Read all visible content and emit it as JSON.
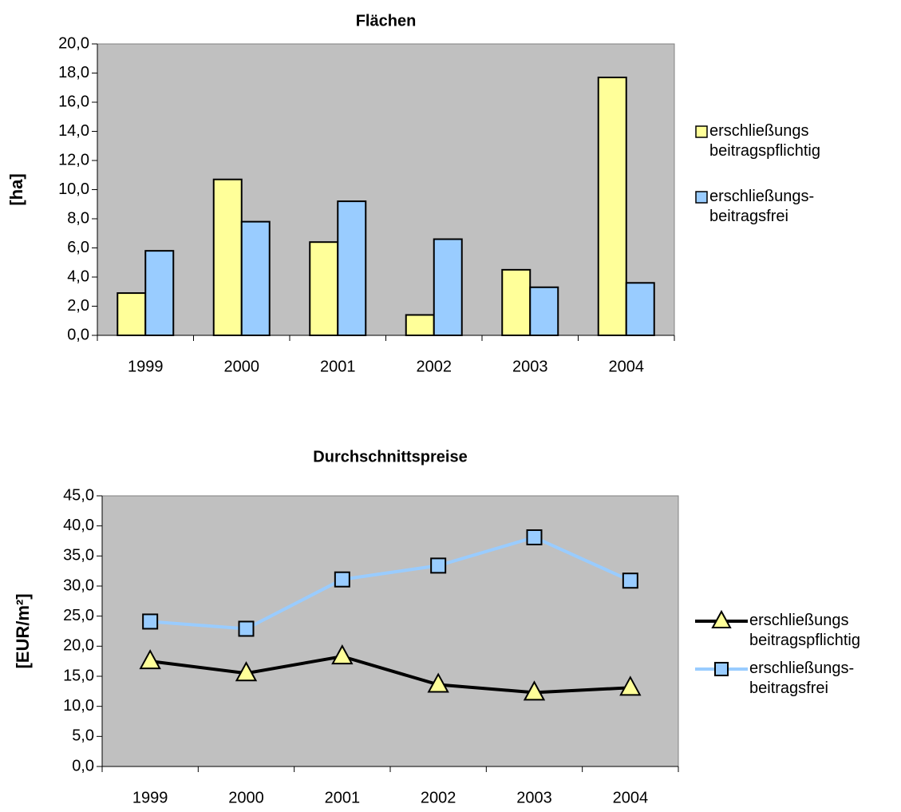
{
  "chart_data": [
    {
      "type": "bar",
      "title": "Flächen",
      "y_label": "[ha]",
      "categories": [
        "1999",
        "2000",
        "2001",
        "2002",
        "2003",
        "2004"
      ],
      "series": [
        {
          "name": "erschließungs\nbeitragspflichtig",
          "color": "#ffff99",
          "values": [
            2.9,
            10.7,
            6.4,
            1.4,
            4.5,
            17.7
          ]
        },
        {
          "name": "erschließungs-\nbeitragsfrei",
          "color": "#99ccff",
          "values": [
            5.8,
            7.8,
            9.2,
            6.6,
            3.3,
            3.6
          ]
        }
      ],
      "ylim": [
        0,
        20
      ],
      "yticks": [
        {
          "value": 0,
          "label": "0,0"
        },
        {
          "value": 2,
          "label": "2,0"
        },
        {
          "value": 4,
          "label": "4,0"
        },
        {
          "value": 6,
          "label": "6,0"
        },
        {
          "value": 8,
          "label": "8,0"
        },
        {
          "value": 10,
          "label": "10,0"
        },
        {
          "value": 12,
          "label": "12,0"
        },
        {
          "value": 14,
          "label": "14,0"
        },
        {
          "value": 16,
          "label": "16,0"
        },
        {
          "value": 18,
          "label": "18,0"
        },
        {
          "value": 20,
          "label": "20,0"
        }
      ],
      "plot_color": "#c0c0c0",
      "grid": false,
      "legend": "right"
    },
    {
      "type": "line",
      "title": "Durchschnittspreise",
      "y_label": "[EUR/m²]",
      "categories": [
        "1999",
        "2000",
        "2001",
        "2002",
        "2003",
        "2004"
      ],
      "series": [
        {
          "name": "erschließungs\nbeitragspflichtig",
          "color": "#ffff99",
          "line_color": "#000000",
          "marker": "triangle",
          "values": [
            17.5,
            15.5,
            18.3,
            13.6,
            12.3,
            13.1
          ]
        },
        {
          "name": "erschließungs-\nbeitragsfrei",
          "color": "#99ccff",
          "line_color": "#99ccff",
          "marker": "square",
          "values": [
            24.1,
            22.9,
            31.1,
            33.4,
            38.1,
            30.9
          ]
        }
      ],
      "ylim": [
        0,
        45
      ],
      "yticks": [
        {
          "value": 0,
          "label": "0,0"
        },
        {
          "value": 5,
          "label": "5,0"
        },
        {
          "value": 10,
          "label": "10,0"
        },
        {
          "value": 15,
          "label": "15,0"
        },
        {
          "value": 20,
          "label": "20,0"
        },
        {
          "value": 25,
          "label": "25,0"
        },
        {
          "value": 30,
          "label": "30,0"
        },
        {
          "value": 35,
          "label": "35,0"
        },
        {
          "value": 40,
          "label": "40,0"
        },
        {
          "value": 45,
          "label": "45,0"
        }
      ],
      "plot_color": "#c0c0c0",
      "grid": false,
      "legend": "right"
    }
  ]
}
